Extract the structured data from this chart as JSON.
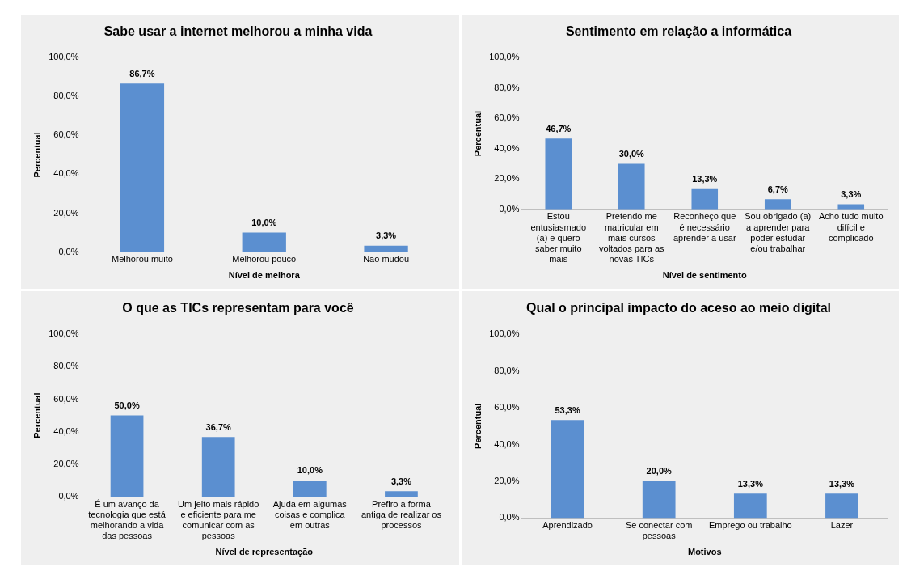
{
  "chart_data": [
    {
      "type": "bar",
      "title": "Sabe usar a internet melhorou a minha vida",
      "xlabel": "Nível de melhora",
      "ylabel": "Percentual",
      "categories": [
        "Melhorou muito",
        "Melhorou pouco",
        "Não mudou"
      ],
      "values": [
        86.7,
        10.0,
        3.3
      ],
      "value_labels": [
        "86,7%",
        "10,0%",
        "3,3%"
      ],
      "color": "#5b8fd0",
      "ylim": [
        0,
        100
      ],
      "yticks": [
        {
          "value": 0,
          "label": "0,0%"
        },
        {
          "value": 20,
          "label": "20,0%"
        },
        {
          "value": 40,
          "label": "40,0%"
        },
        {
          "value": 60,
          "label": "60,0%"
        },
        {
          "value": 80,
          "label": "80,0%"
        },
        {
          "value": 100,
          "label": "100,0%"
        }
      ],
      "grid": false,
      "legend": false
    },
    {
      "type": "bar",
      "title": "Sentimento em relação a informática",
      "xlabel": "Nível de sentimento",
      "ylabel": "Percentual",
      "categories": [
        "Estou entusiasmado (a) e quero saber muito mais",
        "Pretendo me matricular em mais cursos voltados para as novas TICs",
        "Reconheço que é necessário aprender a usar",
        "Sou obrigado (a) a aprender para poder estudar e/ou trabalhar",
        "Acho tudo muito difícil e complicado"
      ],
      "values": [
        46.7,
        30.0,
        13.3,
        6.7,
        3.3
      ],
      "value_labels": [
        "46,7%",
        "30,0%",
        "13,3%",
        "6,7%",
        "3,3%"
      ],
      "color": "#5b8fd0",
      "ylim": [
        0,
        100
      ],
      "yticks": [
        {
          "value": 0,
          "label": "0,0%"
        },
        {
          "value": 20,
          "label": "20,0%"
        },
        {
          "value": 40,
          "label": "40,0%"
        },
        {
          "value": 60,
          "label": "60,0%"
        },
        {
          "value": 80,
          "label": "80,0%"
        },
        {
          "value": 100,
          "label": "100,0%"
        }
      ],
      "grid": false,
      "legend": false
    },
    {
      "type": "bar",
      "title": "O que as TICs representam para você",
      "xlabel": "Nível de representação",
      "ylabel": "Percentual",
      "categories": [
        "É um avanço da tecnologia que está melhorando a vida das pessoas",
        "Um jeito mais rápido e eficiente para me comunicar com as pessoas",
        "Ajuda em algumas coisas e complica em outras",
        "Prefiro a forma antiga de realizar os processos"
      ],
      "values": [
        50.0,
        36.7,
        10.0,
        3.3
      ],
      "value_labels": [
        "50,0%",
        "36,7%",
        "10,0%",
        "3,3%"
      ],
      "color": "#5b8fd0",
      "ylim": [
        0,
        100
      ],
      "yticks": [
        {
          "value": 0,
          "label": "0,0%"
        },
        {
          "value": 20,
          "label": "20,0%"
        },
        {
          "value": 40,
          "label": "40,0%"
        },
        {
          "value": 60,
          "label": "60,0%"
        },
        {
          "value": 80,
          "label": "80,0%"
        },
        {
          "value": 100,
          "label": "100,0%"
        }
      ],
      "grid": false,
      "legend": false
    },
    {
      "type": "bar",
      "title": "Qual o principal impacto do aceso ao meio digital",
      "xlabel": "Motivos",
      "ylabel": "Percentual",
      "categories": [
        "Aprendizado",
        "Se conectar com pessoas",
        "Emprego ou trabalho",
        "Lazer"
      ],
      "values": [
        53.3,
        20.0,
        13.3,
        13.3
      ],
      "value_labels": [
        "53,3%",
        "20,0%",
        "13,3%",
        "13,3%"
      ],
      "color": "#5b8fd0",
      "ylim": [
        0,
        100
      ],
      "yticks": [
        {
          "value": 0,
          "label": "0,0%"
        },
        {
          "value": 20,
          "label": "20,0%"
        },
        {
          "value": 40,
          "label": "40,0%"
        },
        {
          "value": 60,
          "label": "60,0%"
        },
        {
          "value": 80,
          "label": "80,0%"
        },
        {
          "value": 100,
          "label": "100,0%"
        }
      ],
      "grid": false,
      "legend": false
    }
  ]
}
